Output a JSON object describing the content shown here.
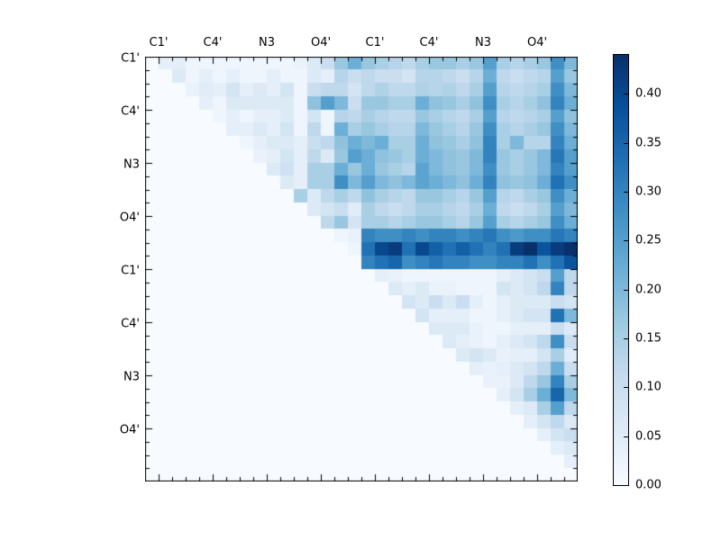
{
  "figure": {
    "background_color": "#ffffff",
    "frame_color": "#000000"
  },
  "chart_data": {
    "type": "heatmap",
    "title": "",
    "xlabel": "",
    "ylabel": "",
    "x_tick_labels": [
      "C1'",
      "C4'",
      "N3",
      "O4'",
      "C1'",
      "C4'",
      "N3",
      "O4'"
    ],
    "y_tick_labels": [
      "C1'",
      "C4'",
      "N3",
      "O4'",
      "C1'",
      "C4'",
      "N3",
      "O4'"
    ],
    "matrix_size": 32,
    "label_group_size": 4,
    "grid": false,
    "vmin": 0.0,
    "vmax": 0.44,
    "colormap": {
      "name": "Blues",
      "stops": [
        {
          "t": 0.0,
          "color": "#f7fbff"
        },
        {
          "t": 0.125,
          "color": "#deebf7"
        },
        {
          "t": 0.25,
          "color": "#c6dbef"
        },
        {
          "t": 0.375,
          "color": "#9ecae1"
        },
        {
          "t": 0.5,
          "color": "#6baed6"
        },
        {
          "t": 0.625,
          "color": "#4292c6"
        },
        {
          "t": 0.75,
          "color": "#2171b5"
        },
        {
          "t": 0.875,
          "color": "#08519c"
        },
        {
          "t": 1.0,
          "color": "#08306b"
        }
      ]
    },
    "colorbar": {
      "position": "right",
      "tick_labels": [
        "0.00",
        "0.05",
        "0.10",
        "0.15",
        "0.20",
        "0.25",
        "0.30",
        "0.35",
        "0.40"
      ],
      "tick_values": [
        0.0,
        0.05,
        0.1,
        0.15,
        0.2,
        0.25,
        0.3,
        0.35,
        0.4
      ]
    },
    "values": [
      [
        0,
        0.04,
        0.04,
        0.02,
        0.02,
        0.02,
        0.02,
        0.02,
        0.02,
        0.02,
        0.02,
        0.03,
        0.06,
        0.1,
        0.17,
        0.22,
        0.17,
        0.15,
        0.13,
        0.12,
        0.15,
        0.17,
        0.17,
        0.15,
        0.17,
        0.25,
        0.15,
        0.13,
        0.15,
        0.17,
        0.28,
        0.2
      ],
      [
        0,
        0,
        0.06,
        0.02,
        0.04,
        0.02,
        0.04,
        0.02,
        0.02,
        0.04,
        0.02,
        0.02,
        0.06,
        0.04,
        0.13,
        0.1,
        0.12,
        0.1,
        0.1,
        0.08,
        0.13,
        0.13,
        0.12,
        0.1,
        0.13,
        0.22,
        0.12,
        0.1,
        0.12,
        0.13,
        0.25,
        0.17
      ],
      [
        0,
        0,
        0,
        0.03,
        0.05,
        0.04,
        0.08,
        0.04,
        0.06,
        0.04,
        0.08,
        0.02,
        0.1,
        0.12,
        0.12,
        0.08,
        0.12,
        0.14,
        0.12,
        0.12,
        0.14,
        0.13,
        0.14,
        0.12,
        0.15,
        0.25,
        0.13,
        0.12,
        0.13,
        0.15,
        0.28,
        0.2
      ],
      [
        0,
        0,
        0,
        0,
        0.04,
        0.02,
        0.06,
        0.06,
        0.06,
        0.06,
        0.06,
        0.02,
        0.18,
        0.25,
        0.2,
        0.1,
        0.17,
        0.17,
        0.15,
        0.15,
        0.22,
        0.18,
        0.17,
        0.15,
        0.18,
        0.28,
        0.15,
        0.13,
        0.15,
        0.18,
        0.3,
        0.22
      ],
      [
        0,
        0,
        0,
        0,
        0,
        0.02,
        0.04,
        0.02,
        0.04,
        0.04,
        0.06,
        0.02,
        0.08,
        0.02,
        0.13,
        0.12,
        0.15,
        0.13,
        0.12,
        0.12,
        0.17,
        0.15,
        0.13,
        0.12,
        0.15,
        0.25,
        0.13,
        0.12,
        0.13,
        0.15,
        0.25,
        0.18
      ],
      [
        0,
        0,
        0,
        0,
        0,
        0,
        0.04,
        0.04,
        0.06,
        0.04,
        0.08,
        0.02,
        0.12,
        0.02,
        0.22,
        0.15,
        0.17,
        0.15,
        0.13,
        0.13,
        0.2,
        0.17,
        0.15,
        0.13,
        0.17,
        0.28,
        0.15,
        0.13,
        0.15,
        0.17,
        0.28,
        0.2
      ],
      [
        0,
        0,
        0,
        0,
        0,
        0,
        0,
        0.02,
        0.04,
        0.06,
        0.06,
        0.04,
        0.1,
        0.12,
        0.18,
        0.22,
        0.2,
        0.22,
        0.15,
        0.15,
        0.22,
        0.18,
        0.17,
        0.15,
        0.18,
        0.3,
        0.15,
        0.2,
        0.13,
        0.13,
        0.3,
        0.22
      ],
      [
        0,
        0,
        0,
        0,
        0,
        0,
        0,
        0,
        0.03,
        0.04,
        0.08,
        0.04,
        0.12,
        0.06,
        0.17,
        0.25,
        0.22,
        0.18,
        0.17,
        0.15,
        0.22,
        0.2,
        0.18,
        0.17,
        0.2,
        0.3,
        0.17,
        0.15,
        0.17,
        0.2,
        0.32,
        0.25
      ],
      [
        0,
        0,
        0,
        0,
        0,
        0,
        0,
        0,
        0,
        0.06,
        0.09,
        0.04,
        0.15,
        0.15,
        0.22,
        0.17,
        0.22,
        0.17,
        0.15,
        0.13,
        0.24,
        0.2,
        0.18,
        0.17,
        0.2,
        0.28,
        0.17,
        0.15,
        0.17,
        0.2,
        0.3,
        0.25
      ],
      [
        0,
        0,
        0,
        0,
        0,
        0,
        0,
        0,
        0,
        0,
        0.06,
        0.04,
        0.15,
        0.15,
        0.28,
        0.2,
        0.25,
        0.2,
        0.18,
        0.2,
        0.24,
        0.22,
        0.2,
        0.18,
        0.22,
        0.3,
        0.18,
        0.17,
        0.18,
        0.22,
        0.33,
        0.28
      ],
      [
        0,
        0,
        0,
        0,
        0,
        0,
        0,
        0,
        0,
        0,
        0,
        0.15,
        0.06,
        0.12,
        0.15,
        0.12,
        0.18,
        0.15,
        0.13,
        0.12,
        0.17,
        0.17,
        0.15,
        0.13,
        0.17,
        0.25,
        0.13,
        0.12,
        0.15,
        0.17,
        0.28,
        0.22
      ],
      [
        0,
        0,
        0,
        0,
        0,
        0,
        0,
        0,
        0,
        0,
        0,
        0,
        0.06,
        0.08,
        0.1,
        0.05,
        0.15,
        0.12,
        0.1,
        0.12,
        0.15,
        0.15,
        0.13,
        0.12,
        0.15,
        0.22,
        0.12,
        0.1,
        0.12,
        0.15,
        0.25,
        0.2
      ],
      [
        0,
        0,
        0,
        0,
        0,
        0,
        0,
        0,
        0,
        0,
        0,
        0,
        0,
        0.12,
        0.17,
        0.08,
        0.15,
        0.15,
        0.13,
        0.15,
        0.17,
        0.17,
        0.15,
        0.13,
        0.17,
        0.25,
        0.15,
        0.13,
        0.15,
        0.17,
        0.28,
        0.22
      ],
      [
        0,
        0,
        0,
        0,
        0,
        0,
        0,
        0,
        0,
        0,
        0,
        0,
        0,
        0,
        0.02,
        0.03,
        0.3,
        0.28,
        0.28,
        0.3,
        0.28,
        0.3,
        0.3,
        0.28,
        0.3,
        0.32,
        0.28,
        0.26,
        0.28,
        0.28,
        0.32,
        0.3
      ],
      [
        0,
        0,
        0,
        0,
        0,
        0,
        0,
        0,
        0,
        0,
        0,
        0,
        0,
        0,
        0,
        0.02,
        0.33,
        0.4,
        0.42,
        0.33,
        0.4,
        0.36,
        0.33,
        0.36,
        0.33,
        0.3,
        0.33,
        0.42,
        0.44,
        0.38,
        0.42,
        0.44
      ],
      [
        0,
        0,
        0,
        0,
        0,
        0,
        0,
        0,
        0,
        0,
        0,
        0,
        0,
        0,
        0,
        0,
        0.3,
        0.33,
        0.35,
        0.28,
        0.3,
        0.32,
        0.3,
        0.3,
        0.28,
        0.28,
        0.3,
        0.3,
        0.33,
        0.28,
        0.33,
        0.38
      ],
      [
        0,
        0,
        0,
        0,
        0,
        0,
        0,
        0,
        0,
        0,
        0,
        0,
        0,
        0,
        0,
        0,
        0,
        0.04,
        0.03,
        0.02,
        0.02,
        0.02,
        0.02,
        0.02,
        0.02,
        0.02,
        0.04,
        0.06,
        0.08,
        0.1,
        0.25,
        0.12
      ],
      [
        0,
        0,
        0,
        0,
        0,
        0,
        0,
        0,
        0,
        0,
        0,
        0,
        0,
        0,
        0,
        0,
        0,
        0,
        0.06,
        0.04,
        0.06,
        0.03,
        0.03,
        0.02,
        0.02,
        0.02,
        0.08,
        0.06,
        0.08,
        0.12,
        0.3,
        0.12
      ],
      [
        0,
        0,
        0,
        0,
        0,
        0,
        0,
        0,
        0,
        0,
        0,
        0,
        0,
        0,
        0,
        0,
        0,
        0,
        0,
        0.08,
        0.06,
        0.1,
        0.06,
        0.1,
        0.04,
        0.02,
        0.04,
        0.06,
        0.06,
        0.06,
        0.1,
        0.08
      ],
      [
        0,
        0,
        0,
        0,
        0,
        0,
        0,
        0,
        0,
        0,
        0,
        0,
        0,
        0,
        0,
        0,
        0,
        0,
        0,
        0,
        0.08,
        0.04,
        0.04,
        0.04,
        0.02,
        0.02,
        0.04,
        0.06,
        0.08,
        0.08,
        0.33,
        0.2
      ],
      [
        0,
        0,
        0,
        0,
        0,
        0,
        0,
        0,
        0,
        0,
        0,
        0,
        0,
        0,
        0,
        0,
        0,
        0,
        0,
        0,
        0,
        0.06,
        0.06,
        0.06,
        0.03,
        0.02,
        0.02,
        0.04,
        0.04,
        0.04,
        0.1,
        0.06
      ],
      [
        0,
        0,
        0,
        0,
        0,
        0,
        0,
        0,
        0,
        0,
        0,
        0,
        0,
        0,
        0,
        0,
        0,
        0,
        0,
        0,
        0,
        0,
        0.06,
        0.04,
        0.03,
        0.02,
        0.04,
        0.06,
        0.08,
        0.12,
        0.28,
        0.1
      ],
      [
        0,
        0,
        0,
        0,
        0,
        0,
        0,
        0,
        0,
        0,
        0,
        0,
        0,
        0,
        0,
        0,
        0,
        0,
        0,
        0,
        0,
        0,
        0,
        0.06,
        0.08,
        0.06,
        0.03,
        0.04,
        0.04,
        0.08,
        0.15,
        0.05
      ],
      [
        0,
        0,
        0,
        0,
        0,
        0,
        0,
        0,
        0,
        0,
        0,
        0,
        0,
        0,
        0,
        0,
        0,
        0,
        0,
        0,
        0,
        0,
        0,
        0,
        0.04,
        0.03,
        0.04,
        0.06,
        0.08,
        0.12,
        0.22,
        0.1
      ],
      [
        0,
        0,
        0,
        0,
        0,
        0,
        0,
        0,
        0,
        0,
        0,
        0,
        0,
        0,
        0,
        0,
        0,
        0,
        0,
        0,
        0,
        0,
        0,
        0,
        0,
        0.03,
        0.03,
        0.06,
        0.12,
        0.17,
        0.3,
        0.15
      ],
      [
        0,
        0,
        0,
        0,
        0,
        0,
        0,
        0,
        0,
        0,
        0,
        0,
        0,
        0,
        0,
        0,
        0,
        0,
        0,
        0,
        0,
        0,
        0,
        0,
        0,
        0,
        0.04,
        0.08,
        0.15,
        0.22,
        0.35,
        0.2
      ],
      [
        0,
        0,
        0,
        0,
        0,
        0,
        0,
        0,
        0,
        0,
        0,
        0,
        0,
        0,
        0,
        0,
        0,
        0,
        0,
        0,
        0,
        0,
        0,
        0,
        0,
        0,
        0,
        0.04,
        0.06,
        0.15,
        0.25,
        0.12
      ],
      [
        0,
        0,
        0,
        0,
        0,
        0,
        0,
        0,
        0,
        0,
        0,
        0,
        0,
        0,
        0,
        0,
        0,
        0,
        0,
        0,
        0,
        0,
        0,
        0,
        0,
        0,
        0,
        0,
        0.04,
        0.08,
        0.12,
        0.06
      ],
      [
        0,
        0,
        0,
        0,
        0,
        0,
        0,
        0,
        0,
        0,
        0,
        0,
        0,
        0,
        0,
        0,
        0,
        0,
        0,
        0,
        0,
        0,
        0,
        0,
        0,
        0,
        0,
        0,
        0,
        0.04,
        0.08,
        0.1
      ],
      [
        0,
        0,
        0,
        0,
        0,
        0,
        0,
        0,
        0,
        0,
        0,
        0,
        0,
        0,
        0,
        0,
        0,
        0,
        0,
        0,
        0,
        0,
        0,
        0,
        0,
        0,
        0,
        0,
        0,
        0,
        0.04,
        0.06
      ],
      [
        0,
        0,
        0,
        0,
        0,
        0,
        0,
        0,
        0,
        0,
        0,
        0,
        0,
        0,
        0,
        0,
        0,
        0,
        0,
        0,
        0,
        0,
        0,
        0,
        0,
        0,
        0,
        0,
        0,
        0,
        0,
        0.04
      ],
      [
        0,
        0,
        0,
        0,
        0,
        0,
        0,
        0,
        0,
        0,
        0,
        0,
        0,
        0,
        0,
        0,
        0,
        0,
        0,
        0,
        0,
        0,
        0,
        0,
        0,
        0,
        0,
        0,
        0,
        0,
        0,
        0
      ]
    ]
  }
}
